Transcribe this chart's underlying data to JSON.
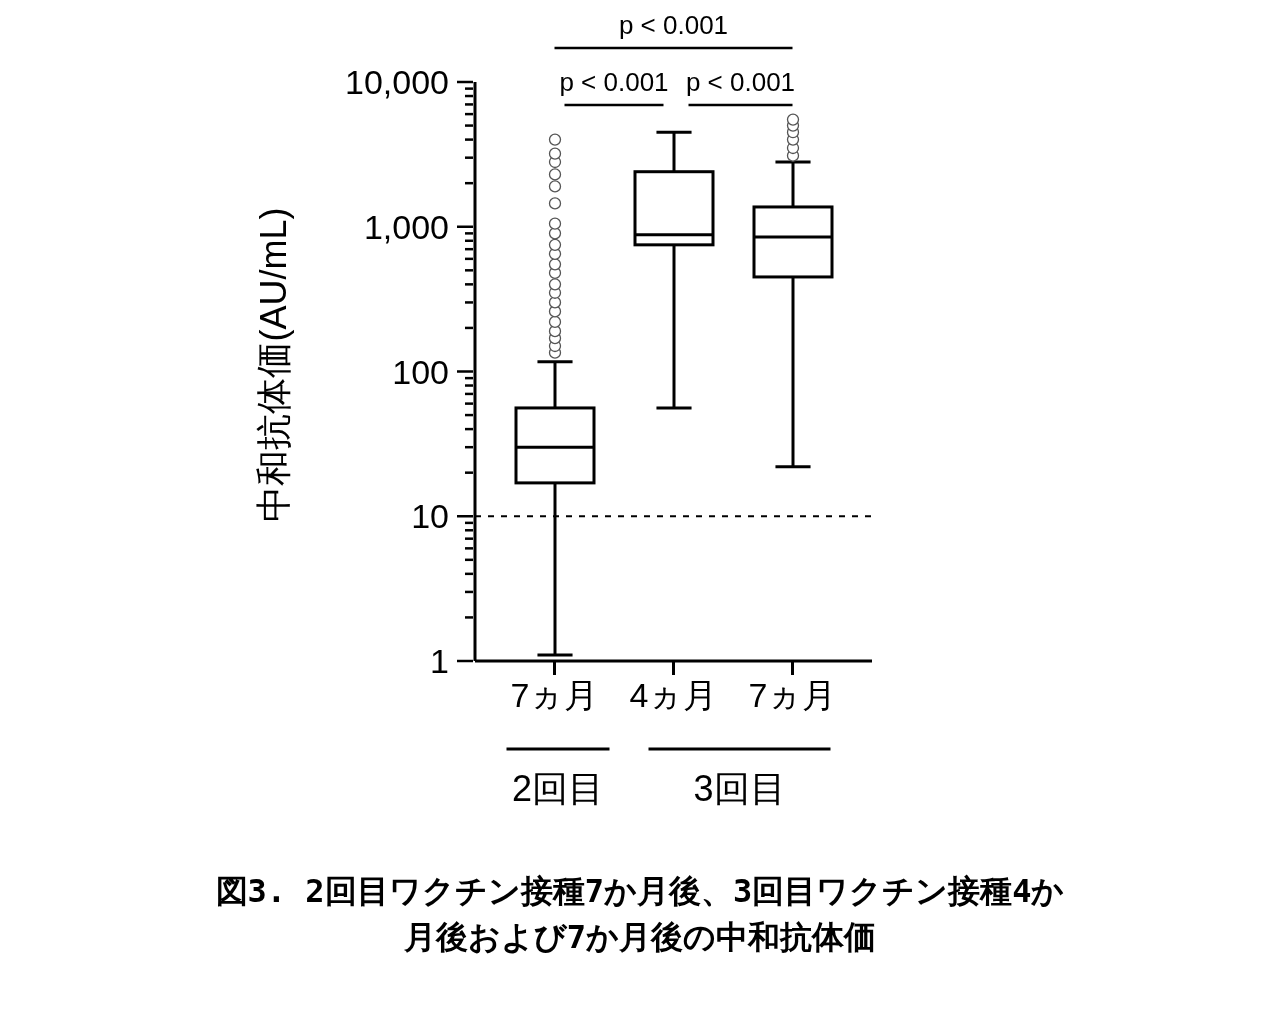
{
  "chart_data": {
    "type": "box",
    "ylabel": "中和抗体価(AU/mL)",
    "categories": [
      "7ヵ月",
      "4ヵ月",
      "7ヵ月"
    ],
    "color": "#000000",
    "log": true,
    "ylim": [
      1,
      10000
    ],
    "yticks": [
      1,
      {
        "value": 2,
        "label": null
      },
      {
        "value": 3,
        "label": null
      },
      {
        "value": 4,
        "label": null
      },
      {
        "value": 5,
        "label": null
      },
      {
        "value": 6,
        "label": null
      },
      {
        "value": 7,
        "label": null
      },
      {
        "value": 8,
        "label": null
      },
      {
        "value": 9,
        "label": null
      },
      10,
      {
        "value": 20,
        "label": null
      },
      {
        "value": 30,
        "label": null
      },
      {
        "value": 40,
        "label": null
      },
      {
        "value": 50,
        "label": null
      },
      {
        "value": 60,
        "label": null
      },
      {
        "value": 70,
        "label": null
      },
      {
        "value": 80,
        "label": null
      },
      {
        "value": 90,
        "label": null
      },
      100,
      {
        "value": 200,
        "label": null
      },
      {
        "value": 300,
        "label": null
      },
      {
        "value": 400,
        "label": null
      },
      {
        "value": 500,
        "label": null
      },
      {
        "value": 600,
        "label": null
      },
      {
        "value": 700,
        "label": null
      },
      {
        "value": 800,
        "label": null
      },
      {
        "value": 900,
        "label": null
      },
      {
        "value": 1000,
        "label": "1,000"
      },
      {
        "value": 2000,
        "label": null
      },
      {
        "value": 3000,
        "label": null
      },
      {
        "value": 4000,
        "label": null
      },
      {
        "value": 5000,
        "label": null
      },
      {
        "value": 6000,
        "label": null
      },
      {
        "value": 7000,
        "label": null
      },
      {
        "value": 8000,
        "label": null
      },
      {
        "value": 9000,
        "label": null
      },
      {
        "value": 10000,
        "label": "10,000"
      }
    ],
    "boxes": [
      {
        "low": 1.1,
        "q1": 17,
        "median": 30,
        "q3": 56,
        "high": 117,
        "outliers": [
          135,
          150,
          170,
          190,
          220,
          260,
          300,
          350,
          400,
          480,
          550,
          650,
          750,
          900,
          1050,
          1450,
          1900,
          2300,
          2800,
          3200,
          4000
        ]
      },
      {
        "low": 56,
        "q1": 750,
        "median": 880,
        "q3": 2400,
        "high": 4500
      },
      {
        "low": 22,
        "q1": 450,
        "median": 850,
        "q3": 1370,
        "high": 2800,
        "outliers": [
          3100,
          3500,
          4000,
          4500,
          5000,
          5500
        ]
      }
    ],
    "ref_lines": [
      {
        "axis": "y",
        "value": 10,
        "line_style": "dashed"
      }
    ],
    "annotations": [
      "p < 0.001",
      "p < 0.001",
      "p < 0.001",
      "2回目",
      "3回目",
      "図3. 2回目ワクチン接種7か月後、3回目ワクチン接種4か月後および7か月後の中和抗体価"
    ]
  }
}
